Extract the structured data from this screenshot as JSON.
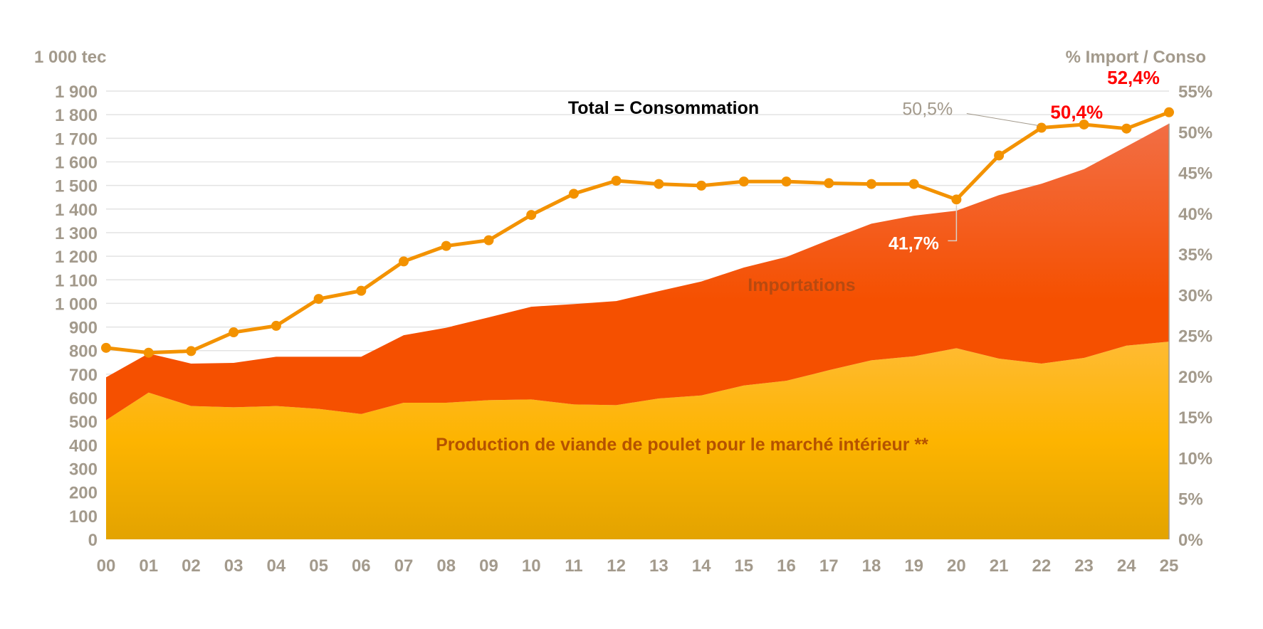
{
  "chart_data": {
    "type": "area",
    "title": "",
    "y_left_label": "1 000 tec",
    "y_right_label": "% Import / Conso",
    "annotation_total": "Total = Consommation",
    "categories": [
      "00",
      "01",
      "02",
      "03",
      "04",
      "05",
      "06",
      "07",
      "08",
      "09",
      "10",
      "11",
      "12",
      "13",
      "14",
      "15",
      "16",
      "17",
      "18",
      "19",
      "20",
      "21",
      "22",
      "23",
      "24",
      "25"
    ],
    "series": [
      {
        "name": "Production de viande de poulet pour le marché intérieur **",
        "kind": "stacked-area",
        "color_top": "#FFBB33",
        "color_bottom": "#E3A300",
        "values": [
          505,
          622,
          565,
          560,
          565,
          553,
          531,
          579,
          579,
          590,
          593,
          572,
          569,
          597,
          610,
          652,
          672,
          717,
          759,
          776,
          810,
          766,
          745,
          769,
          821,
          838
        ]
      },
      {
        "name": "Importations",
        "kind": "stacked-area",
        "color_top": "#F26E45",
        "color_bottom": "#F55000",
        "values": [
          182,
          166,
          180,
          188,
          209,
          221,
          243,
          286,
          318,
          351,
          393,
          425,
          441,
          455,
          483,
          500,
          525,
          552,
          579,
          596,
          583,
          693,
          762,
          800,
          844,
          924
        ]
      },
      {
        "name": "% Import / Conso",
        "kind": "line",
        "axis": "right",
        "color": "#F39200",
        "values": [
          23.5,
          22.9,
          23.1,
          25.4,
          26.2,
          29.5,
          30.5,
          34.1,
          36.0,
          36.7,
          39.8,
          42.4,
          44.0,
          43.6,
          43.4,
          43.9,
          43.9,
          43.7,
          43.6,
          43.6,
          41.7,
          47.1,
          50.5,
          50.9,
          50.4,
          52.4
        ]
      }
    ],
    "y_left_range": [
      0,
      1900
    ],
    "y_left_ticks": [
      "0",
      "100",
      "200",
      "300",
      "400",
      "500",
      "600",
      "700",
      "800",
      "900",
      "1 000",
      "1 100",
      "1 200",
      "1 300",
      "1 400",
      "1 500",
      "1 600",
      "1 700",
      "1 800",
      "1 900"
    ],
    "y_right_range": [
      0,
      55
    ],
    "y_right_ticks": [
      "0%",
      "5%",
      "10%",
      "15%",
      "20%",
      "25%",
      "30%",
      "35%",
      "40%",
      "45%",
      "50%",
      "55%"
    ],
    "data_labels": [
      {
        "category": "20",
        "text": "41,7%",
        "color": "#ffffff"
      },
      {
        "category": "22",
        "text": "50,5%",
        "color": "#a39a8c"
      },
      {
        "category": "24",
        "text": "50,4%",
        "color": "#ff0000"
      },
      {
        "category": "25",
        "text": "52,4%",
        "color": "#ff0000"
      }
    ],
    "grid": "horizontal",
    "legend": "none (inline labels)"
  }
}
